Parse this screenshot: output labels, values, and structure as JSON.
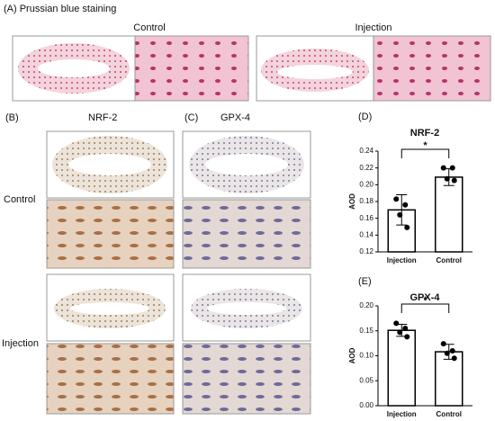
{
  "panel_a": {
    "label": "(A) Prussian blue staining",
    "control": "Control",
    "injection": "Injection"
  },
  "panel_b": {
    "label": "(B)",
    "title": "NRF-2"
  },
  "panel_c": {
    "label": "(C)",
    "title": "GPX-4"
  },
  "row_labels": [
    "Control",
    "Injection"
  ],
  "chart_data": [
    {
      "type": "bar",
      "label": "(D)",
      "title": "NRF-2",
      "ylabel": "AOD",
      "annotation": "*",
      "color": "#000000",
      "categories": [
        "Injection",
        "Control"
      ],
      "values": [
        0.17,
        0.209
      ],
      "errors": [
        0.018,
        0.01
      ],
      "points": [
        [
          0.183,
          0.176,
          0.164,
          0.149
        ],
        [
          0.22,
          0.22,
          0.207,
          0.205
        ]
      ],
      "ylim": [
        0.12,
        0.24
      ],
      "yticks": [
        0.12,
        0.14,
        0.16,
        0.18,
        {
          "value": 0.2,
          "label": "0.20"
        },
        0.22,
        0.24
      ]
    },
    {
      "type": "bar",
      "label": "(E)",
      "title": "GPX-4",
      "ylabel": "AOD",
      "annotation": "*",
      "color": "#000000",
      "categories": [
        "Injection",
        "Control"
      ],
      "values": [
        0.151,
        0.108
      ],
      "errors": [
        0.012,
        0.015
      ],
      "points": [
        [
          0.165,
          0.155,
          0.147,
          0.138
        ],
        [
          0.124,
          0.11,
          0.105,
          0.095
        ]
      ],
      "ylim": [
        0,
        0.2
      ],
      "yticks": [
        {
          "value": 0,
          "label": "0.00"
        },
        0.05,
        {
          "value": 0.1,
          "label": "0.10"
        },
        0.15,
        {
          "value": 0.2,
          "label": "0.20"
        }
      ]
    }
  ]
}
